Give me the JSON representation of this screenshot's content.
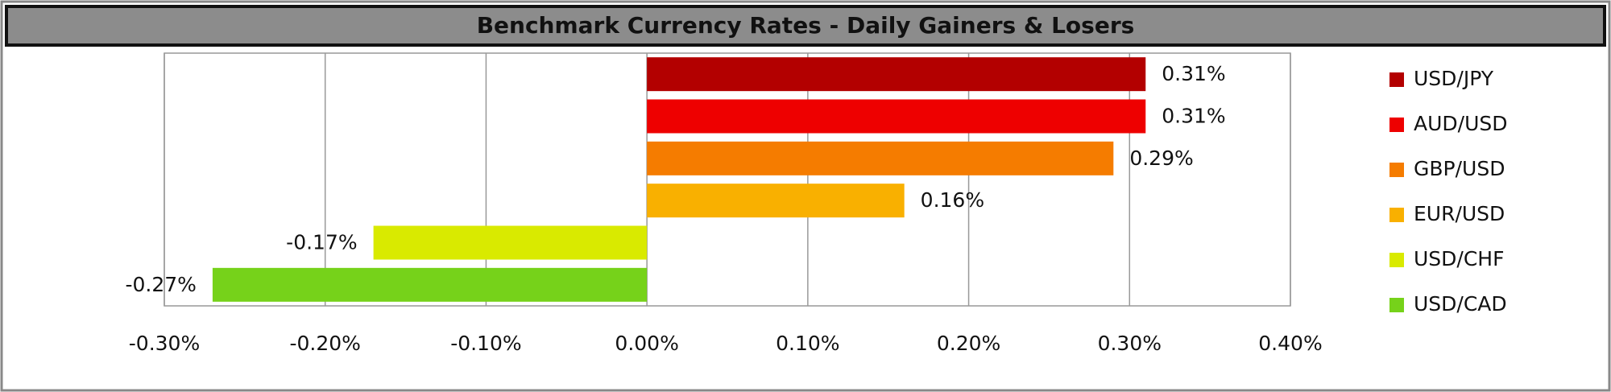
{
  "chart_data": {
    "type": "bar",
    "orientation": "horizontal",
    "title": "Benchmark Currency Rates - Daily Gainers & Losers",
    "series": [
      {
        "name": "USD/JPY",
        "color": "#b30000",
        "values": [
          0.31
        ],
        "value_labels": [
          "0.31%"
        ]
      },
      {
        "name": "AUD/USD",
        "color": "#ee0000",
        "values": [
          0.31
        ],
        "value_labels": [
          "0.31%"
        ]
      },
      {
        "name": "GBP/USD",
        "color": "#f57c00",
        "values": [
          0.29
        ],
        "value_labels": [
          "0.29%"
        ]
      },
      {
        "name": "EUR/USD",
        "color": "#f9b000",
        "values": [
          0.16
        ],
        "value_labels": [
          "0.16%"
        ]
      },
      {
        "name": "USD/CHF",
        "color": "#d9ea00",
        "values": [
          -0.17
        ],
        "value_labels": [
          "-0.17%"
        ]
      },
      {
        "name": "USD/CAD",
        "color": "#76d21a",
        "values": [
          -0.27
        ],
        "value_labels": [
          "-0.27%"
        ]
      }
    ],
    "xlim": [
      -0.3,
      0.4
    ],
    "xticks": [
      {
        "value": -0.3,
        "label": "-0.30%"
      },
      {
        "value": -0.2,
        "label": "-0.20%"
      },
      {
        "value": -0.1,
        "label": "-0.10%"
      },
      {
        "value": 0,
        "label": "0.00%"
      },
      {
        "value": 0.1,
        "label": "0.10%"
      },
      {
        "value": 0.2,
        "label": "0.20%"
      },
      {
        "value": 0.3,
        "label": "0.30%"
      },
      {
        "value": 0.4,
        "label": "0.40%"
      }
    ],
    "grid": true,
    "legend": "right"
  }
}
